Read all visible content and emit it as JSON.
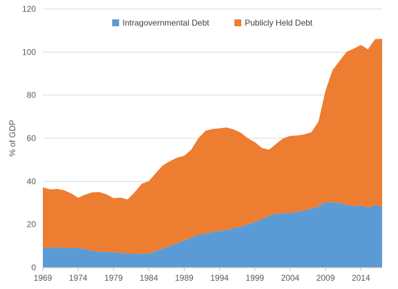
{
  "chart_data": {
    "type": "area",
    "stacked": true,
    "title": "",
    "xlabel": "",
    "ylabel": "% of GDP",
    "ylim": [
      0,
      120
    ],
    "yticks": [
      0,
      20,
      40,
      60,
      80,
      100,
      120
    ],
    "xlim": [
      1969,
      2017
    ],
    "xticks": [
      "1969",
      "1974",
      "1979",
      "1984",
      "1989",
      "1994",
      "1999",
      "2004",
      "2009",
      "2014"
    ],
    "grid": true,
    "legend_position": "top",
    "x": [
      1969,
      1970,
      1971,
      1972,
      1973,
      1974,
      1975,
      1976,
      1977,
      1978,
      1979,
      1980,
      1981,
      1982,
      1983,
      1984,
      1985,
      1986,
      1987,
      1988,
      1989,
      1990,
      1991,
      1992,
      1993,
      1994,
      1995,
      1996,
      1997,
      1998,
      1999,
      2000,
      2001,
      2002,
      2003,
      2004,
      2005,
      2006,
      2007,
      2008,
      2009,
      2010,
      2011,
      2012,
      2013,
      2014,
      2015,
      2016,
      2017
    ],
    "series": [
      {
        "name": "Intragovernmental Debt",
        "color": "#5b9bd5",
        "values": [
          9.0,
          9.3,
          9.4,
          9.2,
          9.2,
          9.1,
          8.6,
          7.8,
          7.3,
          7.2,
          7.1,
          6.8,
          6.4,
          6.4,
          6.5,
          6.5,
          7.6,
          8.9,
          10.0,
          11.3,
          12.6,
          13.9,
          15.2,
          15.8,
          16.6,
          17.0,
          17.4,
          18.3,
          19.0,
          20.0,
          21.2,
          22.5,
          24.0,
          25.0,
          25.2,
          25.3,
          25.8,
          26.6,
          27.4,
          28.4,
          30.3,
          30.2,
          30.0,
          29.2,
          28.4,
          28.8,
          27.8,
          29.0,
          28.2
        ]
      },
      {
        "name": "Publicly Held Debt",
        "color": "#ed7d31",
        "values": [
          28.2,
          27.0,
          27.1,
          26.7,
          25.2,
          23.3,
          25.3,
          27.1,
          27.7,
          26.8,
          25.1,
          25.7,
          25.2,
          28.6,
          32.4,
          33.6,
          36.3,
          38.6,
          39.4,
          39.7,
          39.3,
          40.8,
          44.8,
          47.7,
          47.7,
          47.6,
          47.6,
          45.8,
          43.6,
          40.0,
          37.0,
          33.0,
          30.7,
          32.4,
          34.8,
          35.8,
          35.5,
          35.2,
          35.4,
          39.4,
          51.9,
          61.5,
          66.0,
          71.0,
          73.2,
          74.5,
          73.5,
          77.0,
          78.0
        ]
      }
    ]
  }
}
